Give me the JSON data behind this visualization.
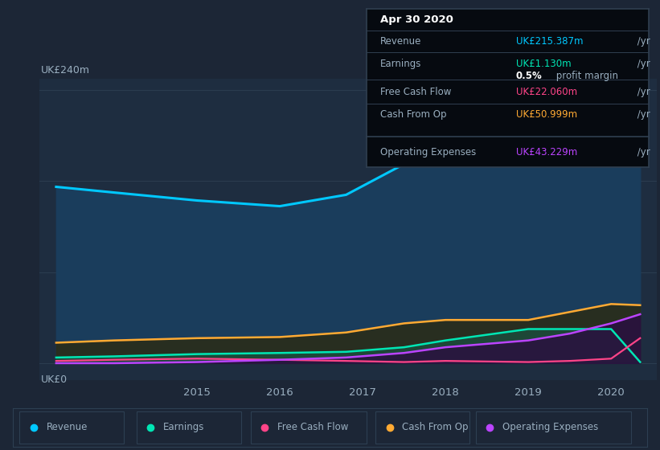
{
  "background_color": "#1c2636",
  "plot_bg_color": "#1e2d40",
  "outer_bg_color": "#1c2636",
  "grid_color": "#2d3f52",
  "text_color": "#9aafc0",
  "white_color": "#ffffff",
  "ylabel_240": "UK£240m",
  "ylabel_0": "UK£0",
  "x_years": [
    2013.3,
    2014.0,
    2015.0,
    2016.0,
    2016.8,
    2017.5,
    2018.0,
    2019.0,
    2019.5,
    2020.0,
    2020.35
  ],
  "revenue": [
    155,
    150,
    143,
    138,
    148,
    175,
    210,
    228,
    232,
    230,
    215
  ],
  "earnings": [
    5,
    6,
    8,
    9,
    10,
    14,
    20,
    30,
    30,
    30,
    1
  ],
  "free_cash_flow": [
    2,
    3,
    4,
    3,
    2,
    1,
    2,
    1,
    2,
    4,
    22
  ],
  "cash_from_op": [
    18,
    20,
    22,
    23,
    27,
    35,
    38,
    38,
    45,
    52,
    51
  ],
  "operating_expenses": [
    0,
    0,
    1,
    3,
    5,
    9,
    14,
    20,
    26,
    35,
    43
  ],
  "revenue_color": "#00c8ff",
  "earnings_color": "#00e6b4",
  "free_cash_flow_color": "#ff4488",
  "cash_from_op_color": "#ffaa33",
  "operating_expenses_color": "#bb44ff",
  "revenue_fill_color": "#1a3d5c",
  "earnings_fill_color": "#1a5040",
  "cash_op_fill_color": "#2a2d1a",
  "opex_fill_color": "#2a1040",
  "tooltip_bg": "#060a10",
  "tooltip_border": "#303f50",
  "tooltip_title": "Apr 30 2020",
  "tt_rev_label": "Revenue",
  "tt_rev_val": "UK£215.387m",
  "tt_earn_label": "Earnings",
  "tt_earn_val": "UK£1.130m",
  "tt_margin": "0.5%",
  "tt_margin_text": " profit margin",
  "tt_fcf_label": "Free Cash Flow",
  "tt_fcf_val": "UK£22.060m",
  "tt_cop_label": "Cash From Op",
  "tt_cop_val": "UK£50.999m",
  "tt_opex_label": "Operating Expenses",
  "tt_opex_val": "UK£43.229m",
  "legend_labels": [
    "Revenue",
    "Earnings",
    "Free Cash Flow",
    "Cash From Op",
    "Operating Expenses"
  ],
  "legend_colors": [
    "#00c8ff",
    "#00e6b4",
    "#ff4488",
    "#ffaa33",
    "#bb44ff"
  ],
  "x_ticks": [
    2015,
    2016,
    2017,
    2018,
    2019,
    2020
  ],
  "ylim_low": -15,
  "ylim_high": 250
}
